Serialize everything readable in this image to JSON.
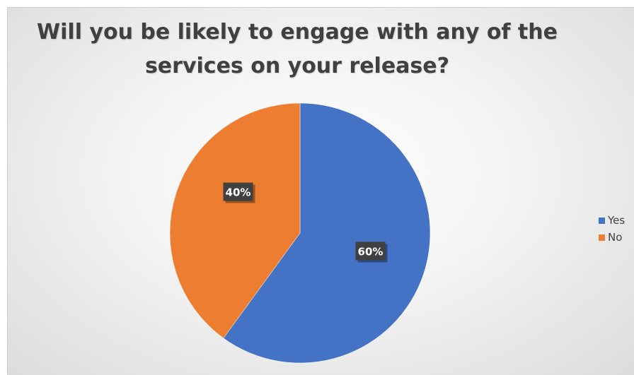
{
  "chart_data": {
    "type": "pie",
    "title": "Will you be likely to engage with any of the services on your release?",
    "title_lines": [
      "Will you be likely to engage with any of the",
      "services on your release?"
    ],
    "categories": [
      "Yes",
      "No"
    ],
    "values": [
      60,
      40
    ],
    "data_labels": [
      "60%",
      "40%"
    ],
    "colors": [
      "#4472C4",
      "#ED7D31"
    ],
    "legend_position": "right"
  }
}
